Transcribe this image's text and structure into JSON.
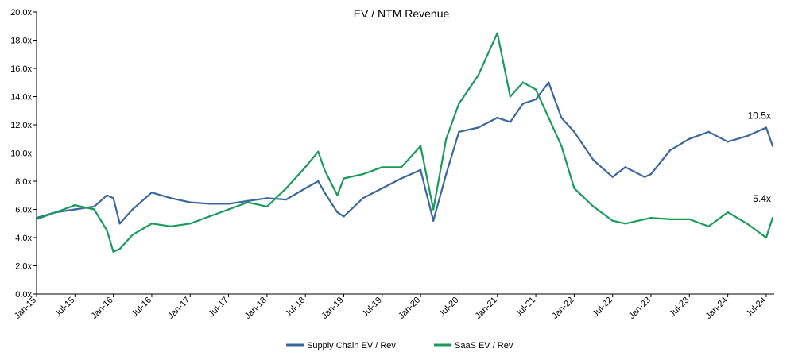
{
  "chart_data": {
    "type": "line",
    "title": "EV / NTM Revenue",
    "xlabel": "",
    "ylabel": "",
    "ylim": [
      0,
      20
    ],
    "y_ticks": [
      "0.0x",
      "2.0x",
      "4.0x",
      "6.0x",
      "8.0x",
      "10.0x",
      "12.0x",
      "14.0x",
      "16.0x",
      "18.0x",
      "20.0x"
    ],
    "x_tick_labels": [
      "Jan-15",
      "Jul-15",
      "Jan-16",
      "Jul-16",
      "Jan-17",
      "Jul-17",
      "Jan-18",
      "Jul-18",
      "Jan-19",
      "Jul-19",
      "Jan-20",
      "Jul-20",
      "Jan-21",
      "Jul-21",
      "Jan-22",
      "Jul-22",
      "Jan-23",
      "Jul-23",
      "Jan-24",
      "Jul-24"
    ],
    "grid": false,
    "legend_position": "bottom",
    "x": [
      "Jan-15",
      "Apr-15",
      "Jul-15",
      "Oct-15",
      "Dec-15",
      "Jan-16",
      "Feb-16",
      "Apr-16",
      "Jul-16",
      "Oct-16",
      "Jan-17",
      "Apr-17",
      "Jul-17",
      "Oct-17",
      "Jan-18",
      "Apr-18",
      "Jul-18",
      "Sep-18",
      "Oct-18",
      "Dec-18",
      "Jan-19",
      "Apr-19",
      "Jul-19",
      "Oct-19",
      "Jan-20",
      "Mar-20",
      "May-20",
      "Jul-20",
      "Oct-20",
      "Jan-21",
      "Mar-21",
      "May-21",
      "Jul-21",
      "Sep-21",
      "Nov-21",
      "Jan-22",
      "Apr-22",
      "Jul-22",
      "Sep-22",
      "Dec-22",
      "Jan-23",
      "Apr-23",
      "Jul-23",
      "Oct-23",
      "Jan-24",
      "Apr-24",
      "Jul-24",
      "Aug-24"
    ],
    "series": [
      {
        "name": "Supply Chain EV / Rev",
        "color": "#3a67a0",
        "values": [
          5.4,
          5.8,
          6.0,
          6.2,
          7.0,
          6.8,
          5.0,
          6.0,
          7.2,
          6.8,
          6.5,
          6.4,
          6.4,
          6.6,
          6.8,
          6.7,
          7.5,
          8.0,
          7.2,
          5.8,
          5.5,
          6.8,
          7.5,
          8.2,
          8.8,
          5.2,
          8.5,
          11.5,
          11.8,
          12.5,
          12.2,
          13.5,
          13.8,
          15.0,
          12.5,
          11.5,
          9.5,
          8.3,
          9.0,
          8.3,
          8.5,
          10.2,
          11.0,
          11.5,
          10.8,
          11.2,
          11.8,
          10.5
        ]
      },
      {
        "name": "SaaS EV / Rev",
        "color": "#1a9b5c",
        "values": [
          5.3,
          5.8,
          6.3,
          6.0,
          4.5,
          3.0,
          3.2,
          4.2,
          5.0,
          4.8,
          5.0,
          5.5,
          6.0,
          6.5,
          6.2,
          7.5,
          9.0,
          10.1,
          8.8,
          7.0,
          8.2,
          8.5,
          9.0,
          9.0,
          10.5,
          6.0,
          11.0,
          13.5,
          15.5,
          18.5,
          14.0,
          15.0,
          14.5,
          12.5,
          10.5,
          7.5,
          6.2,
          5.2,
          5.0,
          5.3,
          5.4,
          5.3,
          5.3,
          4.8,
          5.8,
          5.0,
          4.0,
          5.4
        ]
      }
    ],
    "annotations": [
      {
        "text": "10.5x",
        "series": "Supply Chain EV / Rev"
      },
      {
        "text": "5.4x",
        "series": "SaaS EV / Rev"
      }
    ]
  }
}
